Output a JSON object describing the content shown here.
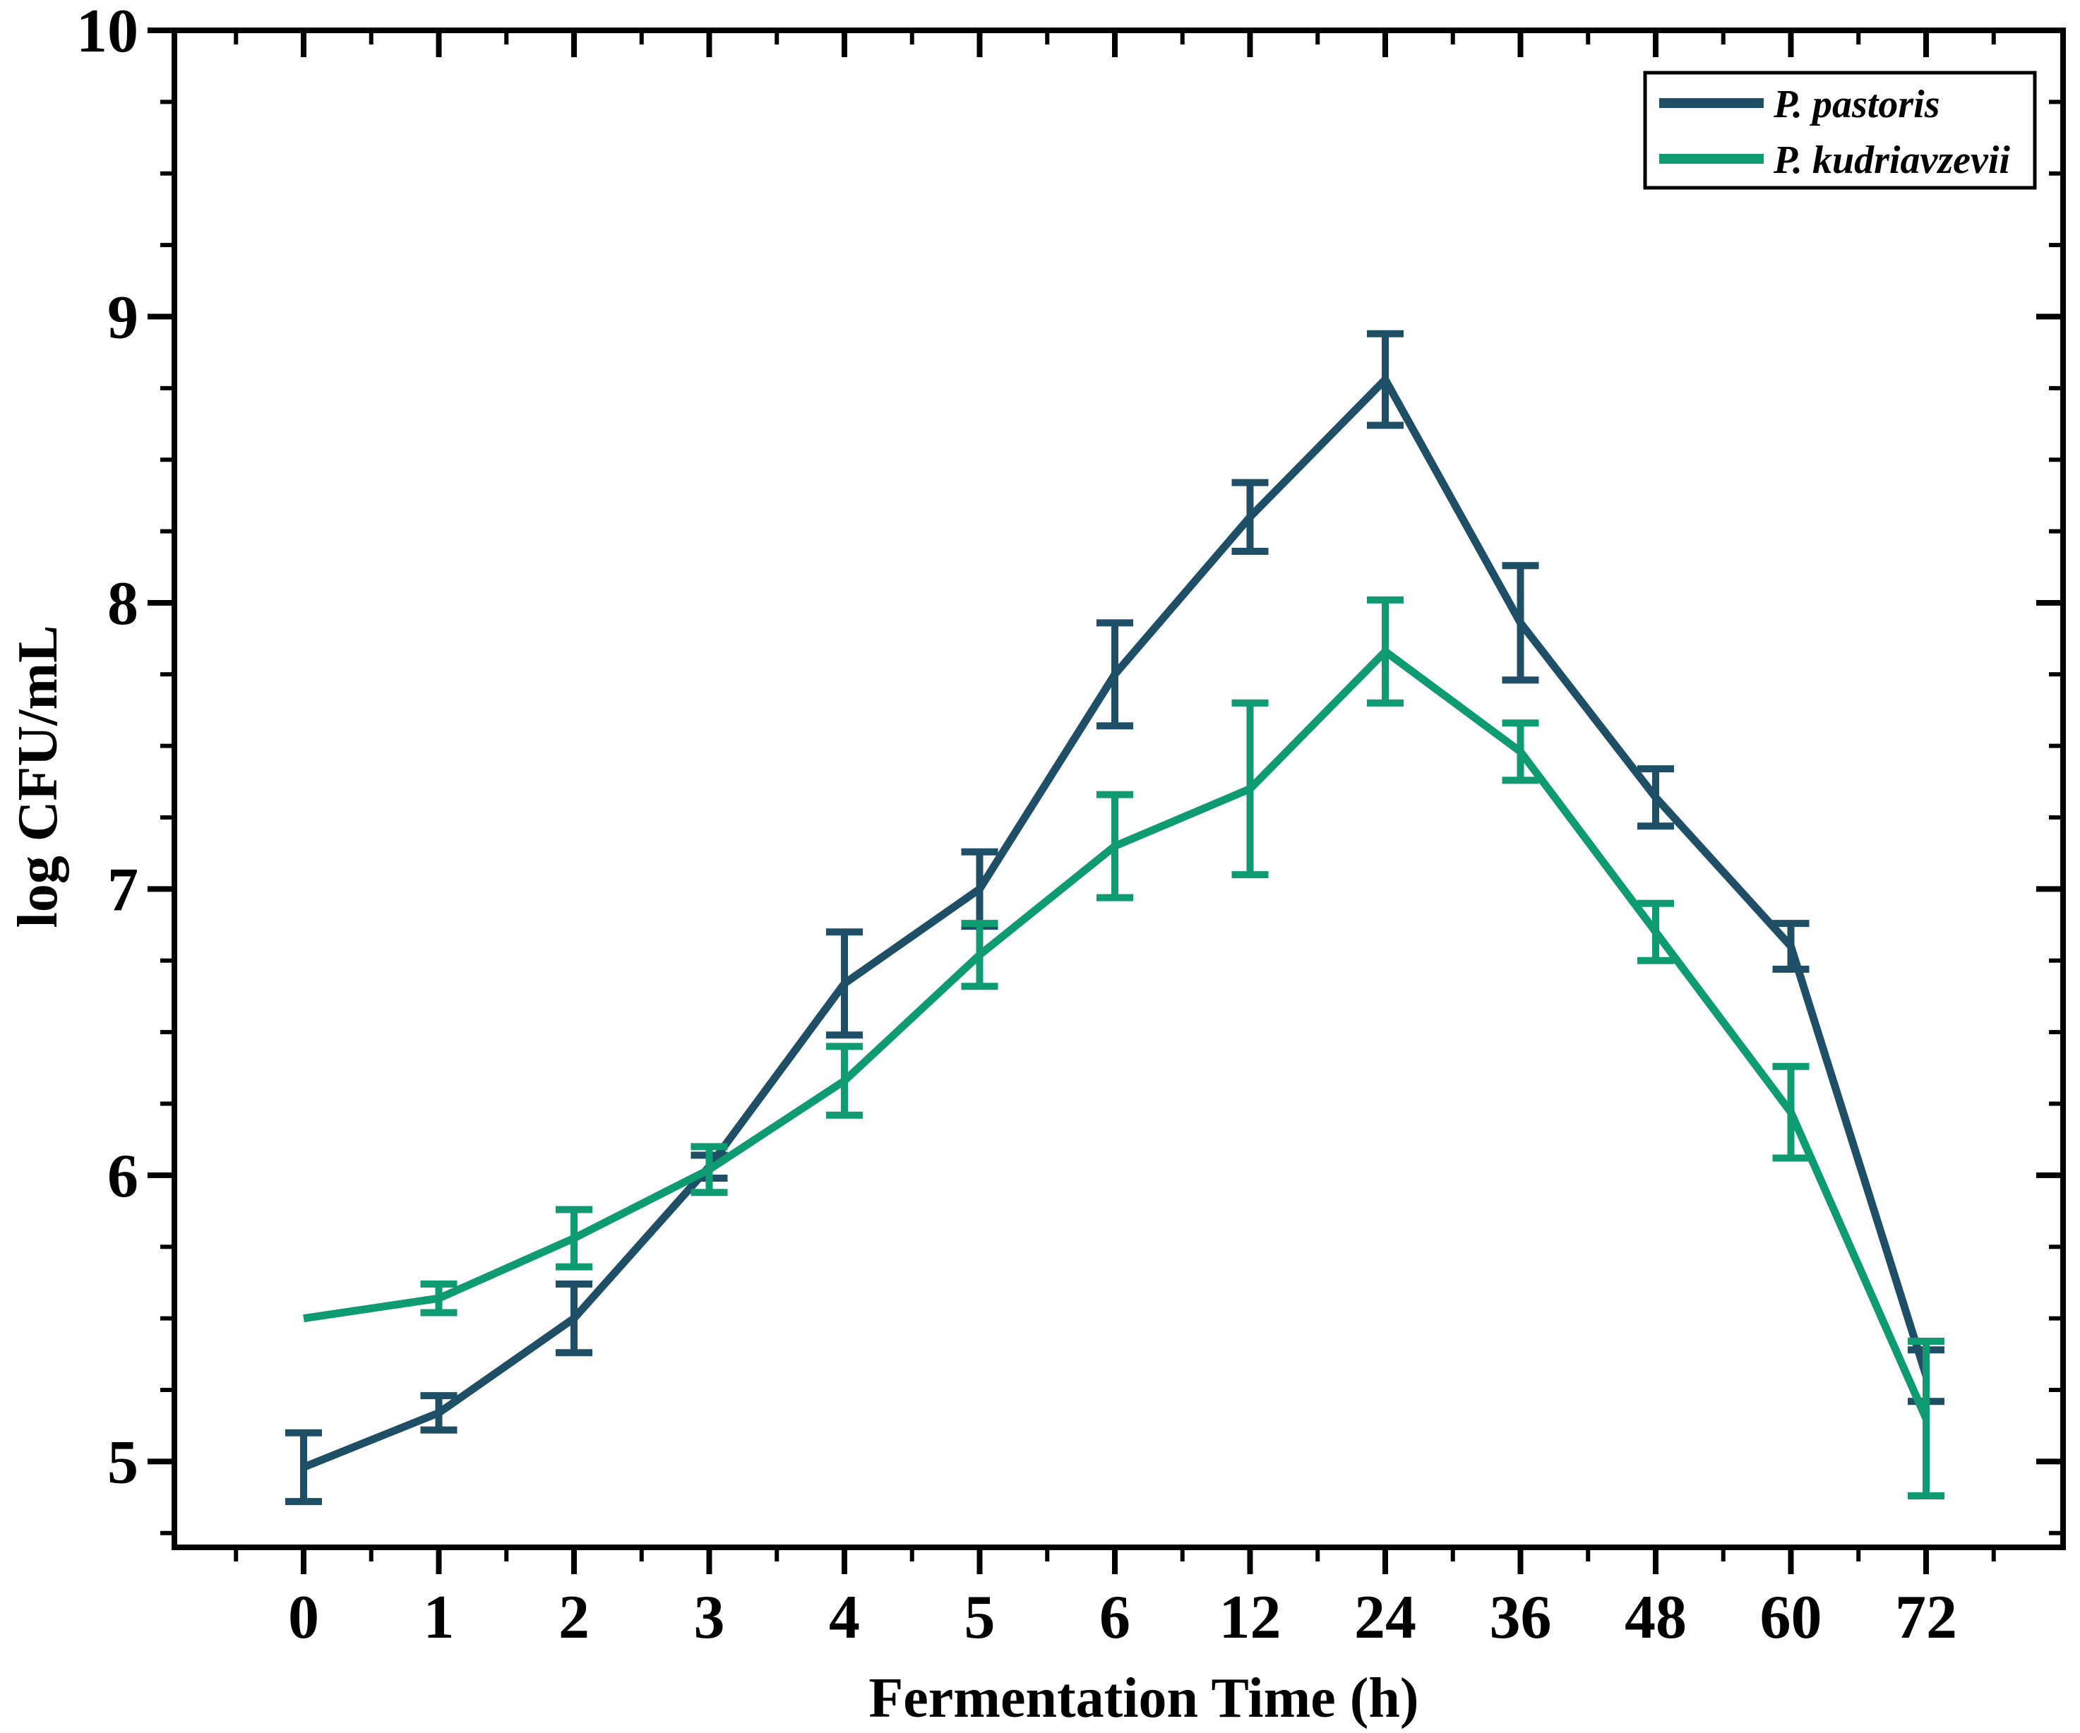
{
  "chart_data": {
    "type": "line",
    "title": "",
    "xlabel": "Fermentation Time (h)",
    "ylabel": "log CFU/mL",
    "categories": [
      "0",
      "1",
      "2",
      "3",
      "4",
      "5",
      "6",
      "12",
      "24",
      "36",
      "48",
      "60",
      "72"
    ],
    "x_axis": {
      "tick_labels": [
        "0",
        "1",
        "2",
        "3",
        "4",
        "5",
        "6",
        "12",
        "24",
        "36",
        "48",
        "60",
        "72"
      ],
      "minor_ticks": "one between each pair of categories",
      "ticks_direction": "out on bottom, in on top"
    },
    "y_axis": {
      "min": 4.7,
      "max": 10,
      "major_tick_interval": 1,
      "minor_tick_interval": 0.25,
      "tick_labels": [
        "5",
        "6",
        "7",
        "8",
        "9",
        "10"
      ],
      "ticks_direction": "out on left, in on right"
    },
    "grid": false,
    "frame": true,
    "background": "#ffffff",
    "axis_color": "#000000",
    "legend": {
      "position": "top-right",
      "border": true
    },
    "series": [
      {
        "name": "P. pastoris",
        "color": "#1e4f66",
        "marker": "none",
        "error_bars": true,
        "values": [
          4.98,
          5.17,
          5.5,
          6.03,
          6.67,
          7.0,
          7.75,
          8.3,
          8.78,
          7.93,
          7.32,
          6.8,
          5.3
        ],
        "errors": [
          0.12,
          0.06,
          0.12,
          0.04,
          0.18,
          0.13,
          0.18,
          0.12,
          0.16,
          0.2,
          0.1,
          0.08,
          0.09
        ]
      },
      {
        "name": "P. kudriavzevii",
        "color": "#0f9b72",
        "marker": "none",
        "error_bars": true,
        "values": [
          5.5,
          5.57,
          5.78,
          6.02,
          6.33,
          6.77,
          7.15,
          7.35,
          7.83,
          7.48,
          6.85,
          6.22,
          5.15
        ],
        "errors": [
          0.0,
          0.05,
          0.1,
          0.08,
          0.12,
          0.11,
          0.18,
          0.3,
          0.18,
          0.1,
          0.1,
          0.16,
          0.27
        ]
      }
    ]
  }
}
